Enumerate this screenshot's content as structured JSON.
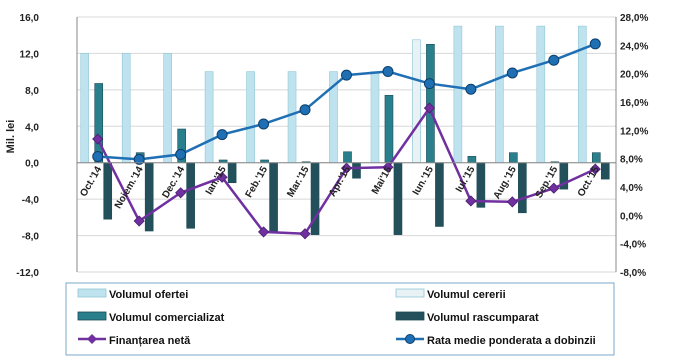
{
  "chart_data": {
    "type": "bar",
    "categories": [
      "Oct.'14",
      "Noiem.'14",
      "Dec.'14",
      "Ian.'15",
      "Feb.'15",
      "Mar.'15",
      "Apr.'15",
      "Mai'15",
      "Iun.'15",
      "Iul.'15",
      "Aug.'15",
      "Sep.'15",
      "Oct.'15"
    ],
    "ylabel": "Mil. lei",
    "ylim": [
      -12,
      16
    ],
    "y_ticks": [
      "-12,0",
      "-8,0",
      "-4,0",
      "0,0",
      "4,0",
      "8,0",
      "12,0",
      "16,0"
    ],
    "y2lim": [
      -8,
      28
    ],
    "y2_ticks": [
      "-8,0%",
      "-4,0%",
      "0,0%",
      "4,0%",
      "8,0%",
      "12,0%",
      "16,0%",
      "20,0%",
      "24,0%",
      "28,0%"
    ],
    "grid": true,
    "series": [
      {
        "name": "Volumul ofertei",
        "type": "bar",
        "axis": "left",
        "color": "#bfe3ee",
        "values": [
          12,
          12,
          12,
          10,
          10,
          10,
          10,
          10,
          10,
          15,
          15,
          15,
          15
        ]
      },
      {
        "name": "Volumul cererii",
        "type": "bar",
        "axis": "left",
        "color": "#e8f1f4",
        "values": [
          0,
          0,
          0,
          0,
          0,
          0,
          0,
          0,
          13.5,
          0,
          0,
          0,
          0
        ]
      },
      {
        "name": "Volumul comercializat",
        "type": "bar",
        "axis": "left",
        "color": "#2a7f8c",
        "values": [
          8.7,
          1.1,
          3.7,
          0.3,
          0.3,
          0.1,
          1.2,
          7.4,
          13,
          0.7,
          1.1,
          0.1,
          1.1
        ]
      },
      {
        "name": "Volumul rascumparat",
        "type": "bar",
        "axis": "left",
        "color": "#23505a",
        "values": [
          -6.2,
          -7.5,
          -7.2,
          -2.2,
          -7.7,
          -7.9,
          -1.7,
          -7.9,
          -7.0,
          -4.9,
          -5.5,
          -2.9,
          -1.8
        ]
      },
      {
        "name": "Finanțarea netă",
        "type": "line",
        "axis": "left",
        "color": "#7030a0",
        "values": [
          2.6,
          -6.4,
          -3.3,
          -1.6,
          -7.6,
          -7.8,
          -0.6,
          -0.5,
          6.0,
          -4.2,
          -4.3,
          -2.8,
          -0.7
        ]
      },
      {
        "name": "Rata medie ponderata a dobinzii",
        "type": "line",
        "axis": "right",
        "color": "#1f6fb4",
        "values": [
          8.3,
          7.9,
          8.6,
          11.4,
          12.9,
          14.9,
          19.8,
          20.3,
          18.6,
          17.8,
          20.1,
          21.9,
          24.2
        ]
      }
    ]
  }
}
